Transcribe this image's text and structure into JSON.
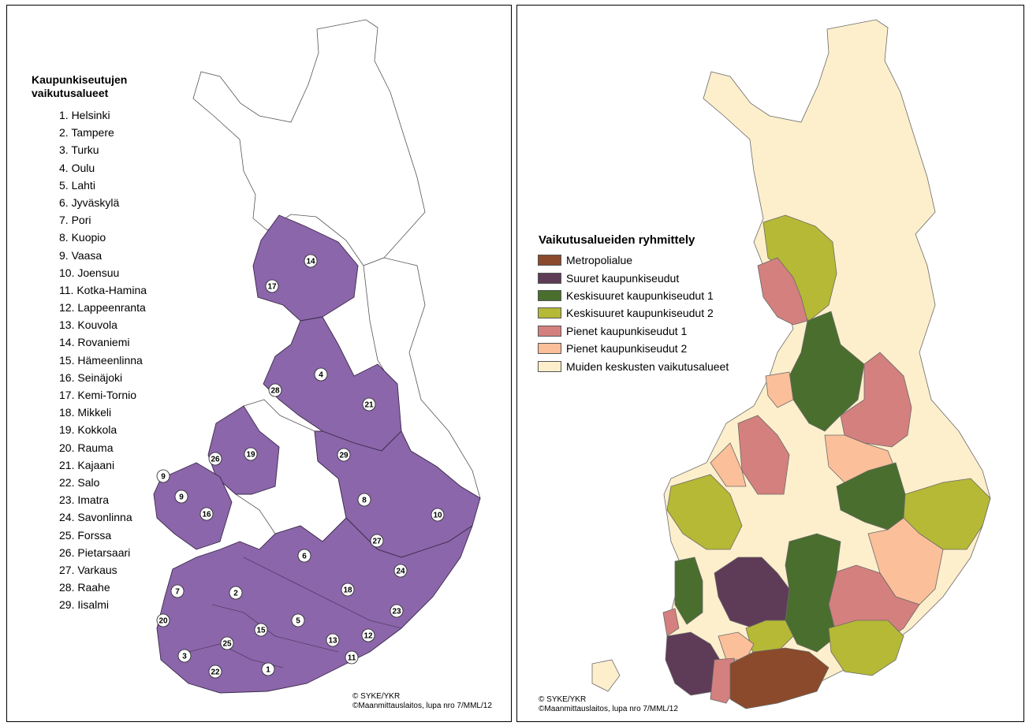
{
  "left_panel": {
    "title": "Kaupunkiseutujen vaikutusalueet",
    "regions": [
      "1. Helsinki",
      "2. Tampere",
      "3. Turku",
      "4. Oulu",
      "5. Lahti",
      "6. Jyväskylä",
      "7. Pori",
      "8. Kuopio",
      "9. Vaasa",
      "10. Joensuu",
      "11. Kotka-Hamina",
      "12. Lappeenranta",
      "13. Kouvola",
      "14. Rovaniemi",
      "15. Hämeenlinna",
      "16. Seinäjoki",
      "17. Kemi-Tornio",
      "18. Mikkeli",
      "19. Kokkola",
      "20. Rauma",
      "21. Kajaani",
      "22. Salo",
      "23. Imatra",
      "24. Savonlinna",
      "25. Forssa",
      "26. Pietarsaari",
      "27. Varkaus",
      "28. Raahe",
      "29. Iisalmi"
    ],
    "map_markers": [
      "14",
      "17",
      "4",
      "28",
      "21",
      "29",
      "26",
      "19",
      "9",
      "9",
      "16",
      "8",
      "10",
      "27",
      "6",
      "24",
      "7",
      "2",
      "18",
      "23",
      "20",
      "15",
      "5",
      "13",
      "12",
      "25",
      "3",
      "11",
      "1",
      "22"
    ],
    "area_fill": "#8b66aa",
    "copyright": [
      "© SYKE/YKR",
      "©Maanmittauslaitos, lupa nro 7/MML/12"
    ]
  },
  "right_panel": {
    "title": "Vaikutusalueiden ryhmittely",
    "groups": [
      {
        "label": "Metropolialue",
        "color": "#8b4a2b"
      },
      {
        "label": "Suuret kaupunkiseudut",
        "color": "#5e3b57"
      },
      {
        "label": "Keskisuuret kaupunkiseudut 1",
        "color": "#4a6e2e"
      },
      {
        "label": "Keskisuuret kaupunkiseudut 2",
        "color": "#b5b935"
      },
      {
        "label": "Pienet kaupunkiseudut 1",
        "color": "#d4807e"
      },
      {
        "label": "Pienet kaupunkiseudut 2",
        "color": "#fbbf9a"
      },
      {
        "label": "Muiden keskusten vaikutusalueet",
        "color": "#fdefcc"
      }
    ],
    "copyright": [
      "© SYKE/YKR",
      "©Maanmittauslaitos, lupa nro 7/MML/12"
    ]
  }
}
